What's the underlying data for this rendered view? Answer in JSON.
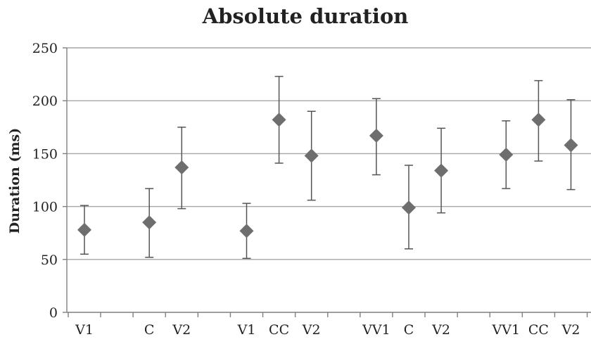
{
  "chart_data": {
    "type": "scatter",
    "title": "Absolute duration",
    "ylabel": "Duration (ms)",
    "xlabel": "",
    "ylim": [
      0,
      250
    ],
    "yticks": [
      0,
      50,
      100,
      150,
      200,
      250
    ],
    "grid": true,
    "legend": "none",
    "marker_color": "#6e6e6e",
    "points": [
      {
        "label": "V1",
        "slot": 1,
        "value": 78,
        "low": 55,
        "high": 101
      },
      {
        "label": "C",
        "slot": 3,
        "value": 85,
        "low": 52,
        "high": 117
      },
      {
        "label": "V2",
        "slot": 4,
        "value": 137,
        "low": 98,
        "high": 175
      },
      {
        "label": "V1",
        "slot": 6,
        "value": 77,
        "low": 51,
        "high": 103
      },
      {
        "label": "CC",
        "slot": 7,
        "value": 182,
        "low": 141,
        "high": 223
      },
      {
        "label": "V2",
        "slot": 8,
        "value": 148,
        "low": 106,
        "high": 190
      },
      {
        "label": "VV1",
        "slot": 10,
        "value": 167,
        "low": 130,
        "high": 202
      },
      {
        "label": "C",
        "slot": 11,
        "value": 99,
        "low": 60,
        "high": 139
      },
      {
        "label": "V2",
        "slot": 12,
        "value": 134,
        "low": 94,
        "high": 174
      },
      {
        "label": "VV1",
        "slot": 14,
        "value": 149,
        "low": 117,
        "high": 181
      },
      {
        "label": "CC",
        "slot": 15,
        "value": 182,
        "low": 143,
        "high": 219
      },
      {
        "label": "V2",
        "slot": 16,
        "value": 158,
        "low": 116,
        "high": 201
      }
    ]
  }
}
